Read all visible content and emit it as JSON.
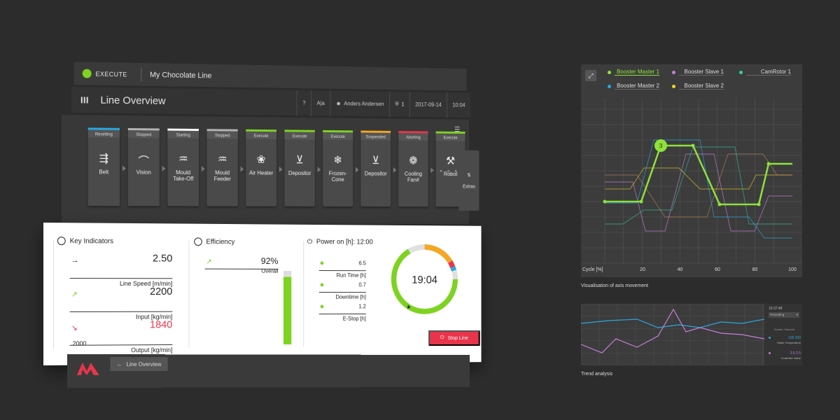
{
  "topbar": {
    "state": "EXECUTE",
    "line_name": "My Chocolate Line"
  },
  "header": {
    "title": "Line Overview",
    "help": "?",
    "lang": "A|a",
    "user": "Anders Andersen",
    "alarms": "1",
    "date": "2017-09-14",
    "time": "10:04"
  },
  "stations": [
    {
      "status": "Resetting",
      "label": "Belt",
      "color": "#29a8e0"
    },
    {
      "status": "Stopped",
      "label": "Vision",
      "color": "#b3b3b3"
    },
    {
      "status": "Starting",
      "label": "Mould Take-Off",
      "color": "#ffffff"
    },
    {
      "status": "Stopped",
      "label": "Mould Feeder",
      "color": "#b3b3b3"
    },
    {
      "status": "Execute",
      "label": "Air Heater",
      "color": "#7ed321"
    },
    {
      "status": "Execute",
      "label": "Depositor",
      "color": "#7ed321"
    },
    {
      "status": "Execute",
      "label": "Frozen-Cone",
      "color": "#7ed321"
    },
    {
      "status": "Suspended",
      "label": "Depositor",
      "color": "#f5a623"
    },
    {
      "status": "Aborting",
      "label": "Cooling Fan#",
      "color": "#e8354b"
    },
    {
      "status": "Execute",
      "label": "Robot",
      "color": "#7ed321"
    }
  ],
  "extras_label": "Extras",
  "key_indicators": {
    "title": "Key Indicators",
    "items": [
      {
        "value": "2.50",
        "label": "Line Speed [m/min]",
        "color": "#222222",
        "arrow": "→"
      },
      {
        "value": "2200",
        "label": "Input [kg/min]",
        "color": "#222222",
        "arrow": "↗"
      },
      {
        "value": "1840",
        "label": "Output [kg/min]",
        "color": "#e8354b",
        "arrow": "↘"
      }
    ],
    "footnote": "2000"
  },
  "efficiency": {
    "title": "Efficiency",
    "value": "92%",
    "label": "Overall",
    "fill": 0.92
  },
  "power": {
    "title": "Power on [h]: 12:00",
    "items": [
      {
        "value": "6.5",
        "label": "Run Time [h]"
      },
      {
        "value": "0.7",
        "label": "Downtime [h]"
      },
      {
        "value": "1.2",
        "label": "E-Stop [h]"
      }
    ],
    "clock": "19:04"
  },
  "buttons": {
    "stop": "Stop Line",
    "back": "Line Overview"
  },
  "axis_panel": {
    "legend": [
      {
        "name": "Booster Master 1",
        "color": "#8ee23a"
      },
      {
        "name": "Booster Slave 1",
        "color": "#c77ddb"
      },
      {
        "name": "CamRotor 1",
        "color": "#2ed1a5"
      },
      {
        "name": "Booster Master 2",
        "color": "#29a8e0"
      },
      {
        "name": "Booster Slave 2",
        "color": "#f5d423"
      }
    ],
    "xlabel": "Cycle [%]",
    "xticks": [
      "20",
      "40",
      "60",
      "80",
      "100"
    ],
    "marker": "3",
    "caption": "Visualisation of axis movement"
  },
  "trend_panel": {
    "time": "19:37:48",
    "mode": "Preceding",
    "header": "Actual / Setpoint",
    "items": [
      {
        "values": "100 100",
        "label": "Water Temperature",
        "color": "#29a8e0"
      },
      {
        "values": "2.5 2.5",
        "label": "Controller Value",
        "color": "#c77ddb"
      }
    ],
    "caption": "Trend analysis"
  }
}
